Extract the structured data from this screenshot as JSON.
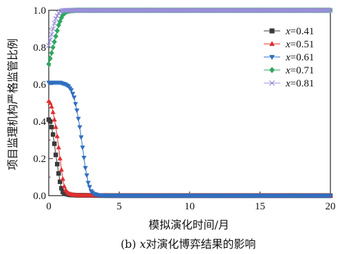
{
  "chart_data": {
    "type": "line",
    "xlabel": "模拟演化时间/月",
    "ylabel": "项目监理机构严格监管比例",
    "caption_prefix": "(b) ",
    "caption_var": "x",
    "caption_rest": "对演化博弈结果的影响",
    "xlim": [
      0,
      20
    ],
    "ylim": [
      0,
      1.0
    ],
    "xticks": [
      0,
      5,
      10,
      15,
      20
    ],
    "yticks": [
      0.0,
      0.2,
      0.4,
      0.6,
      0.8,
      1.0
    ],
    "ytick_labels": [
      "0.0",
      "0.2",
      "0.4",
      "0.6",
      "0.8",
      "1.0"
    ],
    "xtick_labels": [
      "0",
      "5",
      "10",
      "15",
      "20"
    ],
    "legend_position": "top-right",
    "grid": false,
    "series": [
      {
        "name": "x=0.41",
        "var": "x",
        "value_text": "=0.41",
        "color": "#3a3a3a",
        "marker": "square",
        "x": [
          0,
          0.1,
          0.2,
          0.3,
          0.4,
          0.5,
          0.6,
          0.7,
          0.8,
          0.9,
          1.0,
          1.2,
          1.5,
          2,
          3,
          5,
          10,
          15,
          20
        ],
        "y": [
          0.41,
          0.4,
          0.37,
          0.33,
          0.28,
          0.22,
          0.17,
          0.12,
          0.075,
          0.04,
          0.02,
          0.01,
          0.004,
          0.002,
          0.001,
          0,
          0,
          0,
          0
        ]
      },
      {
        "name": "x=0.51",
        "var": "x",
        "value_text": "=0.51",
        "color": "#e03030",
        "marker": "triangle-up",
        "x": [
          0,
          0.1,
          0.2,
          0.3,
          0.4,
          0.5,
          0.6,
          0.7,
          0.8,
          0.9,
          1.0,
          1.1,
          1.2,
          1.4,
          1.7,
          2,
          3,
          5,
          10,
          15,
          20
        ],
        "y": [
          0.51,
          0.5,
          0.48,
          0.45,
          0.41,
          0.37,
          0.32,
          0.26,
          0.2,
          0.14,
          0.09,
          0.05,
          0.03,
          0.012,
          0.005,
          0.002,
          0.001,
          0,
          0,
          0,
          0
        ]
      },
      {
        "name": "x=0.61",
        "var": "x",
        "value_text": "=0.61",
        "color": "#2f6fc0",
        "marker": "triangle-down",
        "x": [
          0,
          0.2,
          0.4,
          0.6,
          0.8,
          1.0,
          1.2,
          1.4,
          1.6,
          1.8,
          2.0,
          2.2,
          2.4,
          2.6,
          2.8,
          3.0,
          3.2,
          3.5,
          4,
          5,
          10,
          15,
          20
        ],
        "y": [
          0.61,
          0.61,
          0.61,
          0.61,
          0.61,
          0.605,
          0.6,
          0.59,
          0.57,
          0.53,
          0.46,
          0.37,
          0.26,
          0.15,
          0.07,
          0.025,
          0.01,
          0.003,
          0.001,
          0,
          0,
          0,
          0
        ]
      },
      {
        "name": "x=0.71",
        "var": "x",
        "value_text": "=0.71",
        "color": "#2ea860",
        "marker": "diamond",
        "x": [
          0,
          0.1,
          0.2,
          0.3,
          0.4,
          0.5,
          0.6,
          0.7,
          0.8,
          0.9,
          1.0,
          1.2,
          1.4,
          1.6,
          2,
          3,
          5,
          10,
          15,
          20
        ],
        "y": [
          0.71,
          0.74,
          0.77,
          0.8,
          0.83,
          0.86,
          0.89,
          0.92,
          0.94,
          0.96,
          0.975,
          0.99,
          0.996,
          0.998,
          1.0,
          1.0,
          1.0,
          1.0,
          1.0,
          1.0
        ]
      },
      {
        "name": "x=0.81",
        "var": "x",
        "value_text": "=0.81",
        "color": "#9a8fd8",
        "marker": "x",
        "x": [
          0,
          0.1,
          0.2,
          0.3,
          0.4,
          0.5,
          0.6,
          0.7,
          0.8,
          0.9,
          1.0,
          1.2,
          1.5,
          2,
          3,
          5,
          10,
          15,
          20
        ],
        "y": [
          0.81,
          0.84,
          0.87,
          0.9,
          0.93,
          0.955,
          0.97,
          0.985,
          0.993,
          0.997,
          0.999,
          1.0,
          1.0,
          1.0,
          1.0,
          1.0,
          1.0,
          1.0,
          1.0
        ]
      }
    ]
  }
}
